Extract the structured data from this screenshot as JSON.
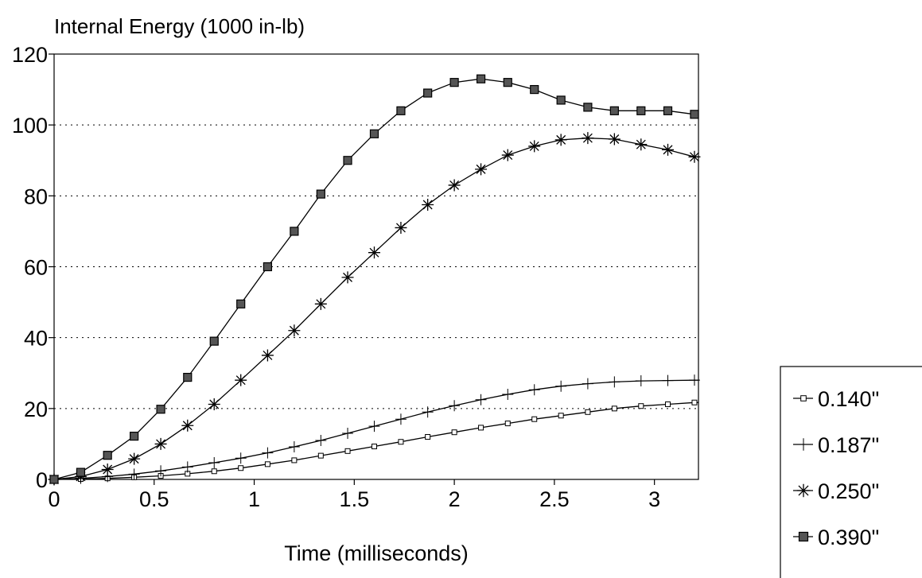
{
  "chart_data": {
    "type": "line",
    "title": "",
    "ylabel": "Internal Energy (1000 in-lb)",
    "xlabel": "Time (milliseconds)",
    "xlim": [
      0,
      3.22
    ],
    "ylim": [
      0,
      120
    ],
    "x_ticks": [
      0,
      0.5,
      1,
      1.5,
      2,
      2.5,
      3
    ],
    "x_tick_labels": [
      "0",
      "0.5",
      "1",
      "1.5",
      "2",
      "2.5",
      "3"
    ],
    "y_ticks": [
      0,
      20,
      40,
      60,
      80,
      100,
      120
    ],
    "y_tick_labels": [
      "0",
      "20",
      "40",
      "60",
      "80",
      "100",
      "120"
    ],
    "grid": "horizontal-dotted",
    "legend_position": "right",
    "series": [
      {
        "name": "0.140\"",
        "marker": "open-square",
        "x": [
          0,
          0.133,
          0.267,
          0.4,
          0.533,
          0.667,
          0.8,
          0.933,
          1.067,
          1.2,
          1.333,
          1.467,
          1.6,
          1.733,
          1.867,
          2.0,
          2.133,
          2.267,
          2.4,
          2.533,
          2.667,
          2.8,
          2.933,
          3.067,
          3.2
        ],
        "y": [
          0,
          0.1,
          0.3,
          0.6,
          1.0,
          1.6,
          2.3,
          3.2,
          4.3,
          5.4,
          6.7,
          8.0,
          9.3,
          10.6,
          12.0,
          13.3,
          14.6,
          15.8,
          17.0,
          18.0,
          19.0,
          20.0,
          20.7,
          21.2,
          21.7
        ]
      },
      {
        "name": "0.187\"",
        "marker": "plus",
        "x": [
          0,
          0.133,
          0.267,
          0.4,
          0.533,
          0.667,
          0.8,
          0.933,
          1.067,
          1.2,
          1.333,
          1.467,
          1.6,
          1.733,
          1.867,
          2.0,
          2.133,
          2.267,
          2.4,
          2.533,
          2.667,
          2.8,
          2.933,
          3.067,
          3.2
        ],
        "y": [
          0,
          0.3,
          0.8,
          1.5,
          2.4,
          3.5,
          4.7,
          6.0,
          7.5,
          9.2,
          11.0,
          13.0,
          15.0,
          17.0,
          19.0,
          20.8,
          22.5,
          24.0,
          25.3,
          26.3,
          27.0,
          27.5,
          27.8,
          27.9,
          28.0
        ]
      },
      {
        "name": "0.250\"",
        "marker": "asterisk",
        "x": [
          0,
          0.133,
          0.267,
          0.4,
          0.533,
          0.667,
          0.8,
          0.933,
          1.067,
          1.2,
          1.333,
          1.467,
          1.6,
          1.733,
          1.867,
          2.0,
          2.133,
          2.267,
          2.4,
          2.533,
          2.667,
          2.8,
          2.933,
          3.067,
          3.2
        ],
        "y": [
          0,
          0.8,
          2.8,
          5.8,
          10.0,
          15.2,
          21.2,
          28.0,
          35.0,
          42.0,
          49.5,
          57.0,
          64.0,
          71.0,
          77.5,
          83.0,
          87.5,
          91.5,
          94.0,
          95.8,
          96.3,
          96.0,
          94.5,
          93.0,
          91.0
        ]
      },
      {
        "name": "0.390\"",
        "marker": "filled-square",
        "x": [
          0,
          0.133,
          0.267,
          0.4,
          0.533,
          0.667,
          0.8,
          0.933,
          1.067,
          1.2,
          1.333,
          1.467,
          1.6,
          1.733,
          1.867,
          2.0,
          2.133,
          2.267,
          2.4,
          2.533,
          2.667,
          2.8,
          2.933,
          3.067,
          3.2
        ],
        "y": [
          0,
          2.0,
          6.8,
          12.2,
          19.8,
          28.8,
          39.0,
          49.5,
          60.0,
          70.0,
          80.5,
          90.0,
          97.5,
          104.0,
          109.0,
          112.0,
          113.0,
          112.0,
          110.0,
          107.0,
          105.0,
          104.0,
          104.0,
          104.0,
          103.0
        ]
      }
    ]
  }
}
